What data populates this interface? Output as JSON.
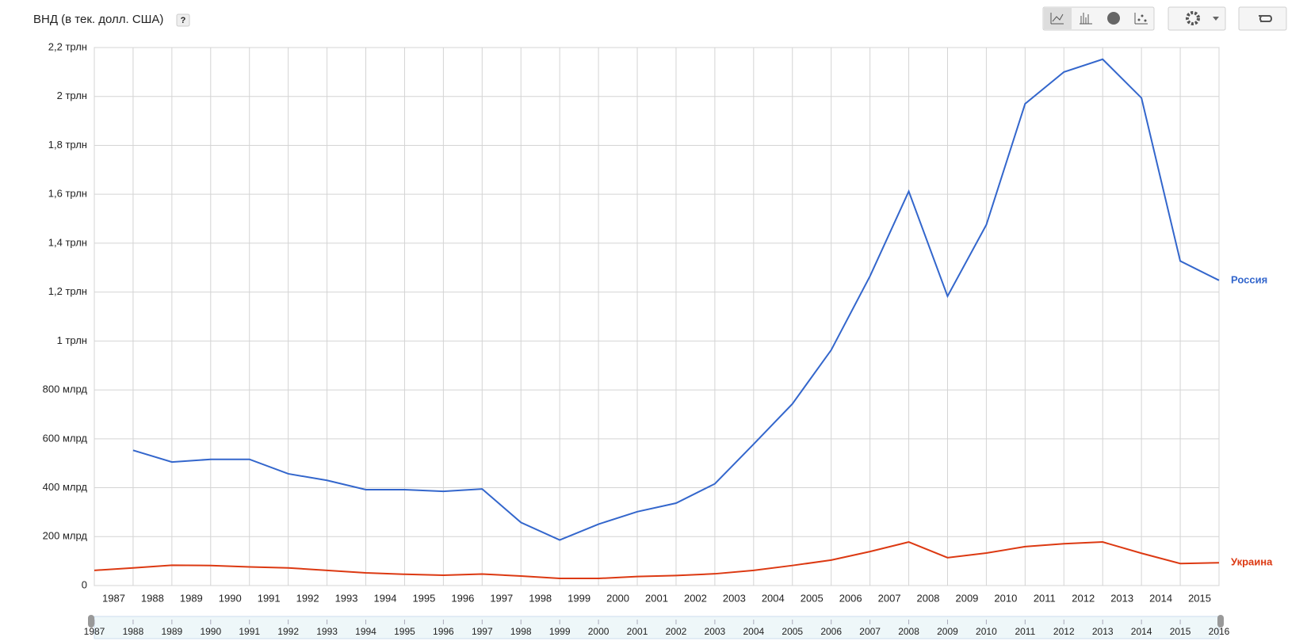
{
  "chart_data": {
    "type": "line",
    "title": "ВНД (в тек. долл. США)",
    "help": "?",
    "grid": true,
    "legend": "line-end",
    "x": [
      1987,
      1988,
      1989,
      1990,
      1991,
      1992,
      1993,
      1994,
      1995,
      1996,
      1997,
      1998,
      1999,
      2000,
      2001,
      2002,
      2003,
      2004,
      2005,
      2006,
      2007,
      2008,
      2009,
      2010,
      2011,
      2012,
      2013,
      2014,
      2015,
      2016
    ],
    "series": [
      {
        "name": "Россия",
        "color": "#3366cc",
        "values": [
          null,
          553000000000,
          505000000000,
          516000000000,
          516000000000,
          457000000000,
          430000000000,
          392000000000,
          392000000000,
          385000000000,
          395000000000,
          258000000000,
          186000000000,
          251000000000,
          302000000000,
          337000000000,
          416000000000,
          578000000000,
          743000000000,
          963000000000,
          1265000000000,
          1612000000000,
          1183000000000,
          1475000000000,
          1970000000000,
          2100000000000,
          2152000000000,
          1994000000000,
          1327000000000,
          1248000000000
        ]
      },
      {
        "name": "Украина",
        "color": "#dc3912",
        "values": [
          62000000000,
          72000000000,
          83000000000,
          82000000000,
          76000000000,
          72000000000,
          62000000000,
          52000000000,
          46000000000,
          42000000000,
          47000000000,
          39000000000,
          29000000000,
          29000000000,
          37000000000,
          41000000000,
          48000000000,
          62000000000,
          82000000000,
          104000000000,
          139000000000,
          178000000000,
          114000000000,
          133000000000,
          159000000000,
          171000000000,
          178000000000,
          132000000000,
          90000000000,
          93000000000
        ]
      }
    ],
    "xlim": [
      1987,
      2016
    ],
    "xticks": [
      1987,
      1988,
      1989,
      1990,
      1991,
      1992,
      1993,
      1994,
      1995,
      1996,
      1997,
      1998,
      1999,
      2000,
      2001,
      2002,
      2003,
      2004,
      2005,
      2006,
      2007,
      2008,
      2009,
      2010,
      2011,
      2012,
      2013,
      2014,
      2015,
      2016
    ],
    "x_period_labels": [
      1987,
      1988,
      1989,
      1990,
      1991,
      1992,
      1993,
      1994,
      1995,
      1996,
      1997,
      1998,
      1999,
      2000,
      2001,
      2002,
      2003,
      2004,
      2005,
      2006,
      2007,
      2008,
      2009,
      2010,
      2011,
      2012,
      2013,
      2014,
      2015
    ],
    "ylim": [
      0,
      2200000000000
    ],
    "yticks": [
      0,
      {
        "value": 200000000000,
        "label": "200 млрд"
      },
      {
        "value": 400000000000,
        "label": "400 млрд"
      },
      {
        "value": 600000000000,
        "label": "600 млрд"
      },
      {
        "value": 800000000000,
        "label": "800 млрд"
      },
      {
        "value": 1000000000000,
        "label": "1 трлн"
      },
      {
        "value": 1200000000000,
        "label": "1,2 трлн"
      },
      {
        "value": 1400000000000,
        "label": "1,4 трлн"
      },
      {
        "value": 1600000000000,
        "label": "1,6 трлн"
      },
      {
        "value": 1800000000000,
        "label": "1,8 трлн"
      },
      {
        "value": 2000000000000,
        "label": "2 трлн"
      },
      {
        "value": 2200000000000,
        "label": "2,2 трлн"
      }
    ]
  }
}
